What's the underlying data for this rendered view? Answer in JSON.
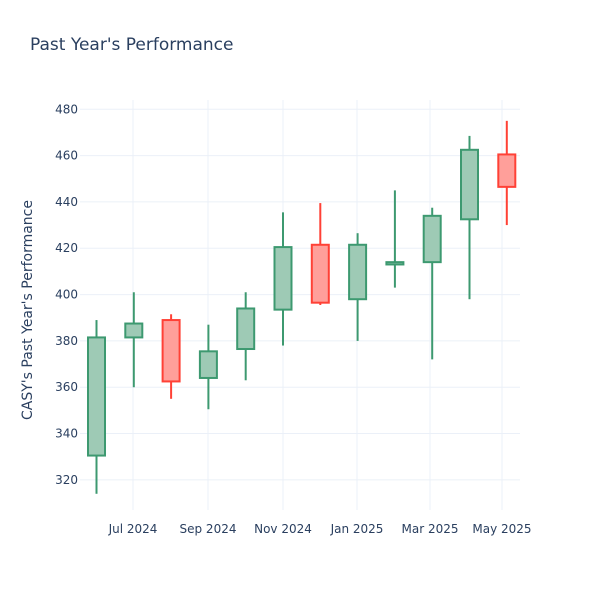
{
  "chart_data": {
    "type": "candlestick",
    "title": "Past Year's Performance",
    "xlabel": "",
    "ylabel": "CASY's Past Year's Performance",
    "x_tick_labels": [
      "Jul 2024",
      "Sep 2024",
      "Nov 2024",
      "Jan 2025",
      "Mar 2025",
      "May 2025"
    ],
    "y_ticks": [
      320,
      340,
      360,
      380,
      400,
      420,
      440,
      460,
      480
    ],
    "ylim": [
      307,
      484
    ],
    "grid": true,
    "colors": {
      "increasing_line": "#3d9970",
      "increasing_fill": "#9ecab5",
      "decreasing_line": "#ff4136",
      "decreasing_fill": "#ff9f9a",
      "grid": "#ebf0f8",
      "text": "#2a3f5f"
    },
    "candles": [
      {
        "date": "2024-06",
        "open": 330.5,
        "high": 389,
        "low": 314,
        "close": 381.5
      },
      {
        "date": "2024-07",
        "open": 381.5,
        "high": 401,
        "low": 360,
        "close": 387.5
      },
      {
        "date": "2024-08",
        "open": 389,
        "high": 391.5,
        "low": 355,
        "close": 362.5
      },
      {
        "date": "2024-09",
        "open": 364,
        "high": 387,
        "low": 350.5,
        "close": 375.5
      },
      {
        "date": "2024-10",
        "open": 376.5,
        "high": 401,
        "low": 363,
        "close": 394
      },
      {
        "date": "2024-11",
        "open": 393.5,
        "high": 435.5,
        "low": 378,
        "close": 420.5
      },
      {
        "date": "2024-12",
        "open": 421.5,
        "high": 439.5,
        "low": 395.5,
        "close": 396.5
      },
      {
        "date": "2025-01",
        "open": 398,
        "high": 426.5,
        "low": 380,
        "close": 421.5
      },
      {
        "date": "2025-02",
        "open": 413,
        "high": 445,
        "low": 403,
        "close": 414
      },
      {
        "date": "2025-03",
        "open": 414,
        "high": 437.5,
        "low": 372,
        "close": 434
      },
      {
        "date": "2025-04",
        "open": 432.5,
        "high": 468.5,
        "low": 398,
        "close": 462.5
      },
      {
        "date": "2025-05",
        "open": 460.5,
        "high": 475,
        "low": 430,
        "close": 446.5
      }
    ]
  }
}
